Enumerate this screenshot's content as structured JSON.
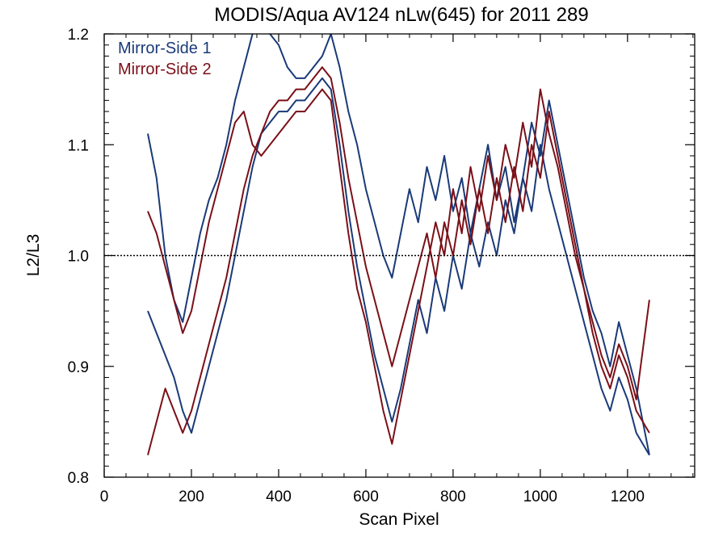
{
  "chart_data": {
    "type": "line",
    "title": "MODIS/Aqua AV124 nLw(645) for 2011 289",
    "xlabel": "Scan Pixel",
    "ylabel": "L2/L3",
    "xlim": [
      0,
      1354
    ],
    "ylim": [
      0.8,
      1.2
    ],
    "xticks": [
      0,
      200,
      400,
      600,
      800,
      1000,
      1200
    ],
    "xtick_labels": [
      "0",
      "200",
      "400",
      "600",
      "800",
      "1000",
      "1200"
    ],
    "yticks": [
      0.8,
      0.9,
      1.0,
      1.1,
      1.2
    ],
    "ytick_labels": [
      "0.8",
      "0.9",
      "1.0",
      "1.1",
      "1.2"
    ],
    "reference_line": {
      "y": 1.0,
      "style": "dotted"
    },
    "legend_placement": "top-left",
    "colors": {
      "Mirror-Side 1": "#1a3a78",
      "Mirror-Side 2": "#7a1018"
    },
    "series": [
      {
        "name": "Mirror-Side 1",
        "x": [
          100,
          120,
          140,
          160,
          180,
          200,
          220,
          240,
          260,
          280,
          300,
          320,
          340,
          360,
          380,
          400,
          420,
          440,
          460,
          480,
          500,
          520,
          540,
          560,
          580,
          600,
          620,
          640,
          660,
          680,
          700,
          720,
          740,
          760,
          780,
          800,
          820,
          840,
          860,
          880,
          900,
          920,
          940,
          960,
          980,
          1000,
          1020,
          1040,
          1060,
          1080,
          1100,
          1120,
          1140,
          1160,
          1180,
          1200,
          1220,
          1250
        ],
        "y": [
          1.11,
          1.07,
          1.0,
          0.96,
          0.94,
          0.98,
          1.02,
          1.05,
          1.07,
          1.1,
          1.14,
          1.17,
          1.2,
          1.21,
          1.2,
          1.19,
          1.17,
          1.16,
          1.16,
          1.17,
          1.18,
          1.2,
          1.17,
          1.13,
          1.1,
          1.06,
          1.03,
          1.0,
          0.98,
          1.02,
          1.06,
          1.03,
          1.08,
          1.05,
          1.09,
          1.04,
          1.07,
          1.02,
          1.06,
          1.1,
          1.05,
          1.08,
          1.03,
          1.07,
          1.12,
          1.09,
          1.14,
          1.1,
          1.06,
          1.02,
          0.98,
          0.95,
          0.93,
          0.9,
          0.94,
          0.91,
          0.88,
          0.82
        ]
      },
      {
        "name": "Mirror-Side 1",
        "x": [
          100,
          120,
          140,
          160,
          180,
          200,
          220,
          240,
          260,
          280,
          300,
          320,
          340,
          360,
          380,
          400,
          420,
          440,
          460,
          480,
          500,
          520,
          540,
          560,
          580,
          600,
          620,
          640,
          660,
          680,
          700,
          720,
          740,
          760,
          780,
          800,
          820,
          840,
          860,
          880,
          900,
          920,
          940,
          960,
          980,
          1000,
          1020,
          1040,
          1060,
          1080,
          1100,
          1120,
          1140,
          1160,
          1180,
          1200,
          1220,
          1250
        ],
        "y": [
          0.95,
          0.93,
          0.91,
          0.89,
          0.86,
          0.84,
          0.87,
          0.9,
          0.93,
          0.96,
          1.0,
          1.04,
          1.08,
          1.11,
          1.12,
          1.13,
          1.13,
          1.14,
          1.14,
          1.15,
          1.16,
          1.15,
          1.1,
          1.04,
          0.99,
          0.95,
          0.91,
          0.88,
          0.85,
          0.88,
          0.92,
          0.96,
          0.93,
          0.98,
          0.95,
          1.0,
          0.97,
          1.02,
          0.99,
          1.03,
          1.0,
          1.05,
          1.02,
          1.07,
          1.04,
          1.1,
          1.06,
          1.03,
          1.0,
          0.97,
          0.94,
          0.91,
          0.88,
          0.86,
          0.89,
          0.87,
          0.84,
          0.82
        ]
      },
      {
        "name": "Mirror-Side 2",
        "x": [
          100,
          120,
          140,
          160,
          180,
          200,
          220,
          240,
          260,
          280,
          300,
          320,
          340,
          360,
          380,
          400,
          420,
          440,
          460,
          480,
          500,
          520,
          540,
          560,
          580,
          600,
          620,
          640,
          660,
          680,
          700,
          720,
          740,
          760,
          780,
          800,
          820,
          840,
          860,
          880,
          900,
          920,
          940,
          960,
          980,
          1000,
          1020,
          1040,
          1060,
          1080,
          1100,
          1120,
          1140,
          1160,
          1180,
          1200,
          1220,
          1250
        ],
        "y": [
          1.04,
          1.02,
          0.99,
          0.96,
          0.93,
          0.95,
          0.99,
          1.03,
          1.06,
          1.09,
          1.12,
          1.13,
          1.1,
          1.09,
          1.1,
          1.11,
          1.12,
          1.13,
          1.13,
          1.14,
          1.15,
          1.14,
          1.08,
          1.02,
          0.97,
          0.94,
          0.9,
          0.86,
          0.83,
          0.87,
          0.91,
          0.95,
          0.99,
          1.03,
          1.0,
          1.06,
          1.02,
          1.08,
          1.04,
          1.09,
          1.05,
          1.1,
          1.07,
          1.12,
          1.08,
          1.15,
          1.11,
          1.08,
          1.04,
          1.0,
          0.97,
          0.94,
          0.91,
          0.89,
          0.92,
          0.9,
          0.87,
          0.96
        ]
      },
      {
        "name": "Mirror-Side 2",
        "x": [
          100,
          120,
          140,
          160,
          180,
          200,
          220,
          240,
          260,
          280,
          300,
          320,
          340,
          360,
          380,
          400,
          420,
          440,
          460,
          480,
          500,
          520,
          540,
          560,
          580,
          600,
          620,
          640,
          660,
          680,
          700,
          720,
          740,
          760,
          780,
          800,
          820,
          840,
          860,
          880,
          900,
          920,
          940,
          960,
          980,
          1000,
          1020,
          1040,
          1060,
          1080,
          1100,
          1120,
          1140,
          1160,
          1180,
          1200,
          1220,
          1250
        ],
        "y": [
          0.82,
          0.85,
          0.88,
          0.86,
          0.84,
          0.86,
          0.89,
          0.92,
          0.95,
          0.98,
          1.02,
          1.06,
          1.09,
          1.11,
          1.13,
          1.14,
          1.14,
          1.15,
          1.15,
          1.16,
          1.17,
          1.16,
          1.12,
          1.07,
          1.03,
          0.99,
          0.96,
          0.93,
          0.9,
          0.93,
          0.96,
          0.99,
          1.02,
          0.98,
          1.03,
          1.0,
          1.05,
          1.01,
          1.06,
          1.02,
          1.07,
          1.03,
          1.08,
          1.04,
          1.1,
          1.07,
          1.13,
          1.09,
          1.05,
          1.01,
          0.97,
          0.93,
          0.9,
          0.88,
          0.91,
          0.89,
          0.86,
          0.84
        ]
      }
    ]
  }
}
